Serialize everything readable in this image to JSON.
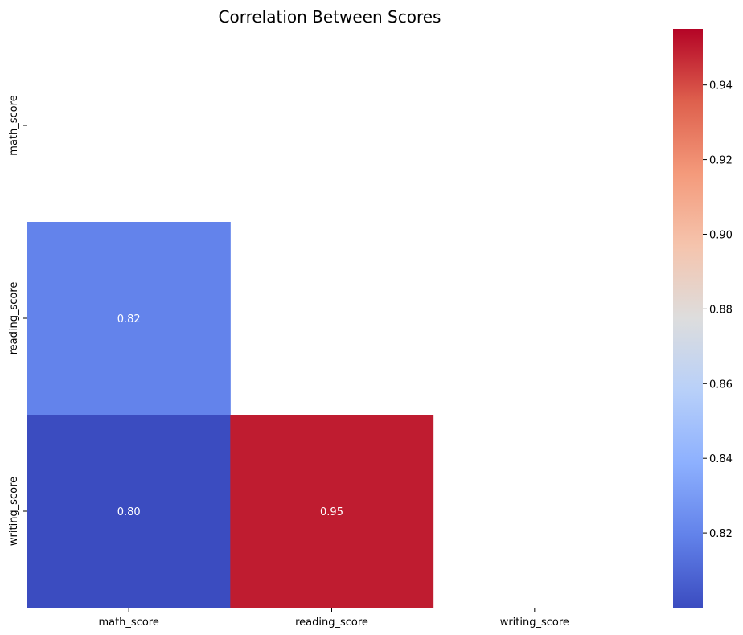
{
  "chart_data": {
    "type": "heatmap",
    "title": "Correlation Between Scores",
    "x_categories": [
      "math_score",
      "reading_score",
      "writing_score"
    ],
    "y_categories": [
      "math_score",
      "reading_score",
      "writing_score"
    ],
    "cells": [
      {
        "row": "reading_score",
        "col": "math_score",
        "value": 0.82,
        "label": "0.82"
      },
      {
        "row": "writing_score",
        "col": "math_score",
        "value": 0.8,
        "label": "0.80"
      },
      {
        "row": "writing_score",
        "col": "reading_score",
        "value": 0.95,
        "label": "0.95"
      }
    ],
    "mask": "upper-triangle-including-diagonal",
    "colormap": "coolwarm",
    "color_min": 0.8,
    "color_max": 0.955,
    "colorbar": {
      "ticks": [
        0.82,
        0.84,
        0.86,
        0.88,
        0.9,
        0.92,
        0.94
      ],
      "tick_labels": [
        "0.82",
        "0.84",
        "0.86",
        "0.88",
        "0.90",
        "0.92",
        "0.94"
      ]
    },
    "colors": {
      "low": "#3b4cc0",
      "mid": "#dddddd",
      "high": "#b40426"
    }
  }
}
